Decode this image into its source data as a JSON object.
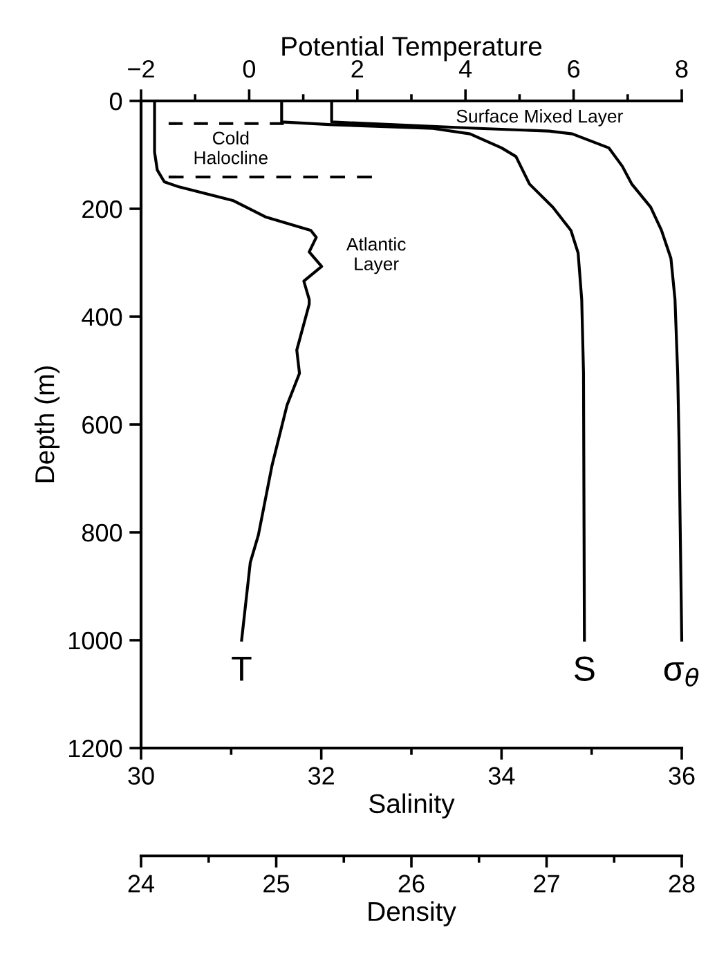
{
  "chart_data": [
    {
      "type": "line",
      "xlabel": "Salinity",
      "ylabel": "Depth (m)",
      "x2label": "Potential Temperature",
      "xlim": [
        30,
        36
      ],
      "xticks": [
        30,
        32,
        34,
        36
      ],
      "x2lim": [
        -2,
        8
      ],
      "x2ticks": [
        {
          "value": -2,
          "label": "−2"
        },
        0,
        2,
        4,
        6,
        8
      ],
      "ylim": [
        1200,
        0
      ],
      "yticks": [
        0,
        200,
        400,
        600,
        800,
        1000,
        1200
      ],
      "marker": "none",
      "line_style": "solid",
      "series": [
        {
          "name": "T",
          "color": "#000000",
          "axis": "x2",
          "values": [
            0,
            5,
            95,
            128,
            150,
            159,
            185,
            215,
            240,
            253,
            280,
            307,
            334,
            368,
            377,
            462,
            505,
            564,
            677,
            805,
            856,
            1000
          ],
          "x": [
            -1.75,
            -1.75,
            -1.75,
            -1.7,
            -1.57,
            -1.31,
            -0.29,
            0.3,
            1.14,
            1.24,
            1.11,
            1.34,
            1.01,
            1.11,
            1.11,
            0.88,
            0.93,
            0.7,
            0.42,
            0.17,
            0.02,
            -0.14
          ]
        },
        {
          "name": "S",
          "color": "#000000",
          "values": [
            0,
            39,
            44,
            51,
            61,
            87,
            103,
            154,
            197,
            240,
            282,
            368,
            505,
            1000
          ],
          "x": [
            31.56,
            31.56,
            32.12,
            33.24,
            33.65,
            34.0,
            34.16,
            34.31,
            34.57,
            34.77,
            34.85,
            34.89,
            34.91,
            34.92
          ]
        },
        {
          "color": "#000000",
          "axis": "x2",
          "line_style": "dashed",
          "values": [
            42,
            42
          ],
          "x": [
            -1.49,
            0.64
          ]
        },
        {
          "color": "#000000",
          "axis": "x2",
          "line_style": "dashed",
          "values": [
            141,
            141
          ],
          "x": [
            -1.49,
            2.27
          ]
        }
      ],
      "annotations": [
        "Surface Mixed Layer",
        "Cold\nHalocline",
        "Atlantic\nLayer"
      ]
    },
    {
      "type": "line",
      "xlabel": "Density",
      "xlim": [
        24,
        28
      ],
      "xticks": [
        24,
        25,
        26,
        27,
        28
      ],
      "ylim": [
        1200,
        0
      ],
      "tick_labels": "x",
      "marker": "none",
      "line_style": "solid",
      "series": [
        {
          "name": "σ$_{θ}$",
          "color": "#000000",
          "values": [
            0,
            39,
            51,
            56,
            61,
            87,
            121,
            154,
            197,
            240,
            292,
            368,
            505,
            633,
            1000
          ],
          "x": [
            25.41,
            25.41,
            26.5,
            27.02,
            27.19,
            27.46,
            27.56,
            27.63,
            27.77,
            27.85,
            27.92,
            27.95,
            27.97,
            27.98,
            28.0
          ]
        }
      ]
    }
  ]
}
